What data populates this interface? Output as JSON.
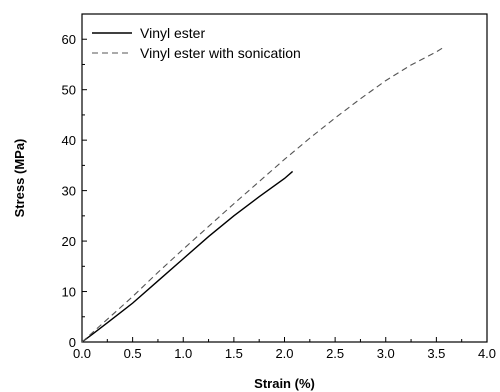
{
  "chart_data": {
    "type": "line",
    "title": "",
    "xlabel": "Strain (%)",
    "ylabel": "Stress (MPa)",
    "xlim": [
      0.0,
      4.0
    ],
    "ylim": [
      0,
      65
    ],
    "x_ticks": [
      "0.0",
      "0.5",
      "1.0",
      "1.5",
      "2.0",
      "2.5",
      "3.0",
      "3.5",
      "4.0"
    ],
    "y_ticks": [
      "0",
      "10",
      "20",
      "30",
      "40",
      "50",
      "60"
    ],
    "grid": false,
    "legend_position": "top-left",
    "series": [
      {
        "name": "Vinyl ester",
        "style": "solid",
        "color": "#000000",
        "x": [
          0.0,
          0.1,
          0.25,
          0.5,
          0.75,
          1.0,
          1.25,
          1.5,
          1.75,
          2.0,
          2.08
        ],
        "y": [
          0.0,
          1.5,
          3.8,
          7.7,
          12.1,
          16.5,
          20.9,
          25.0,
          28.8,
          32.4,
          33.8
        ]
      },
      {
        "name": "Vinyl ester with sonication",
        "style": "dashed",
        "color": "#555555",
        "x": [
          0.0,
          0.1,
          0.25,
          0.5,
          0.75,
          1.0,
          1.25,
          1.5,
          1.75,
          2.0,
          2.25,
          2.5,
          2.75,
          3.0,
          3.25,
          3.5,
          3.58
        ],
        "y": [
          0.0,
          1.8,
          4.5,
          9.0,
          13.8,
          18.4,
          22.9,
          27.4,
          31.8,
          36.2,
          40.4,
          44.4,
          48.2,
          51.8,
          54.9,
          57.5,
          58.5
        ]
      }
    ]
  }
}
